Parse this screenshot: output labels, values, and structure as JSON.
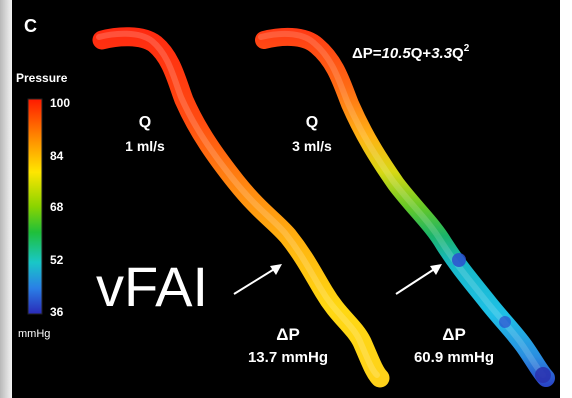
{
  "panel_letter": "C",
  "colorbar": {
    "title": "Pressure",
    "ticks": [
      "100",
      "84",
      "68",
      "52",
      "36"
    ],
    "unit": "mmHg",
    "colors": [
      "#ff1a00",
      "#ff8a00",
      "#ffe600",
      "#8ad400",
      "#1fbf3a",
      "#19c7c7",
      "#2a7fe6",
      "#2a2ab8"
    ]
  },
  "equation": {
    "prefix": "ΔP=",
    "a": "10.5",
    "mid": "Q+",
    "b": "3.3",
    "q": "Q",
    "exp": "2"
  },
  "vessels": [
    {
      "q_label": "Q",
      "flow": "1 ml/s",
      "dp_label": "ΔP",
      "dp_value": "13.7 mmHg"
    },
    {
      "q_label": "Q",
      "flow": "3 ml/s",
      "dp_label": "ΔP",
      "dp_value": "60.9 mmHg"
    }
  ],
  "annotation": "vFAI"
}
